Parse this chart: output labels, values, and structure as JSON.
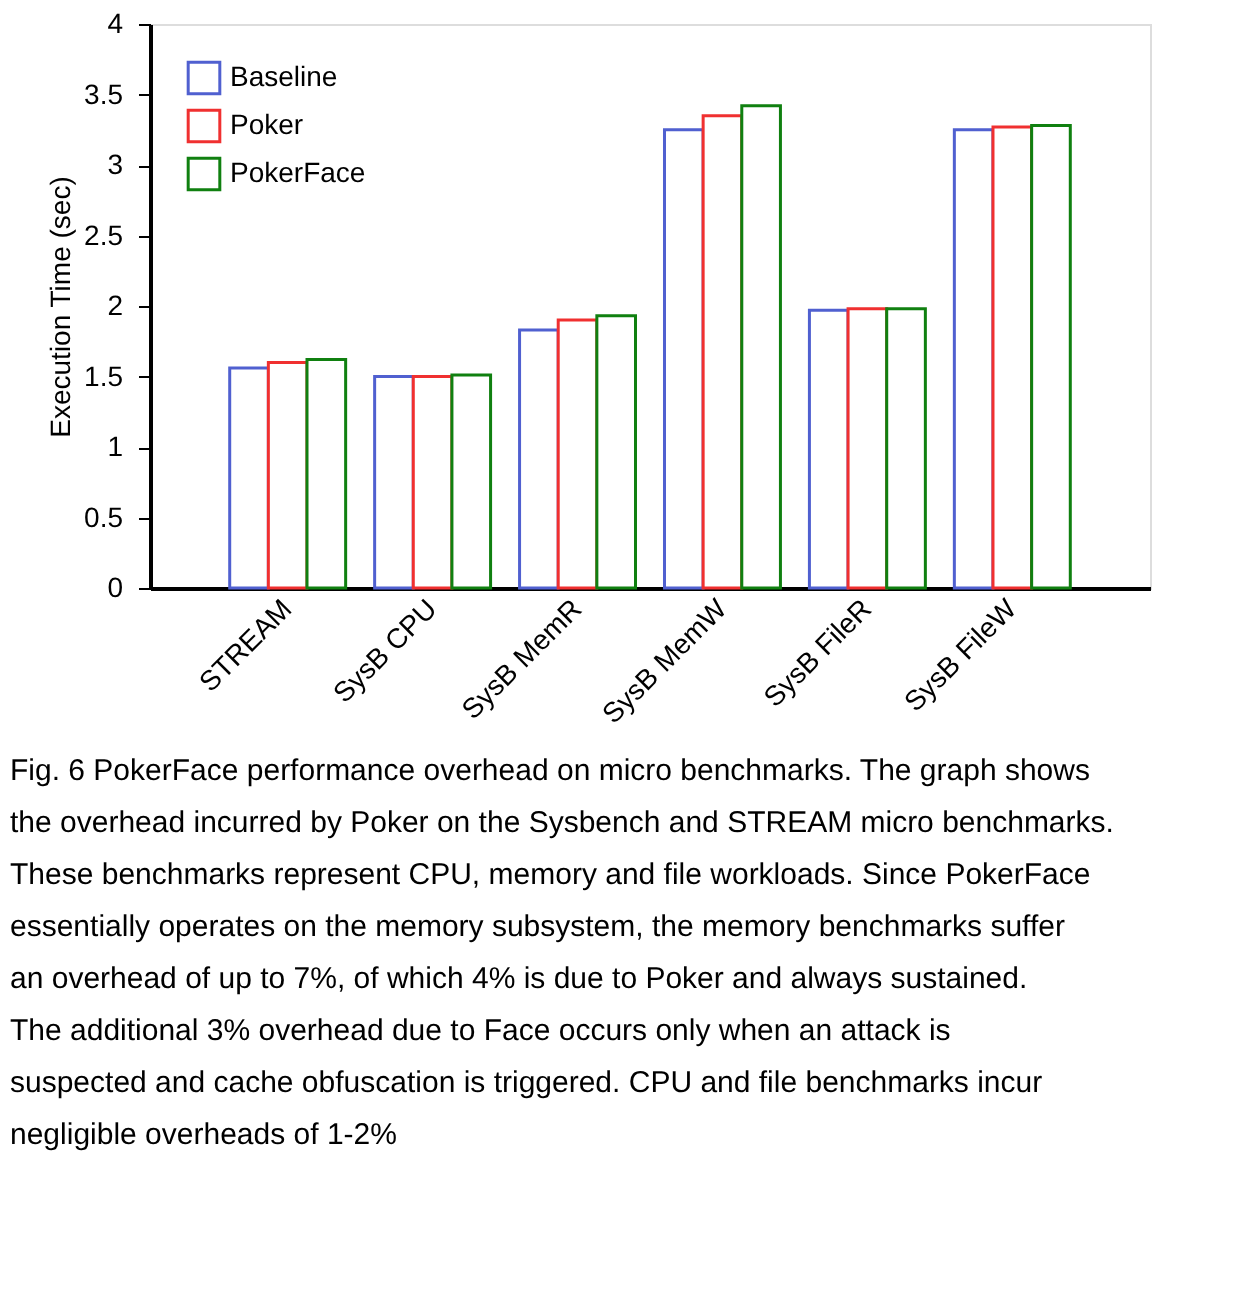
{
  "chart_data": {
    "type": "bar",
    "categories": [
      "STREAM",
      "SysB CPU",
      "SysB MemR",
      "SysB MemW",
      "SysB FileR",
      "SysB FileW"
    ],
    "series": [
      {
        "name": "Baseline",
        "color": "#5060d0",
        "values": [
          1.56,
          1.5,
          1.83,
          3.25,
          1.97,
          3.25
        ]
      },
      {
        "name": "Poker",
        "color": "#f03030",
        "values": [
          1.6,
          1.5,
          1.9,
          3.35,
          1.98,
          3.27
        ]
      },
      {
        "name": "PokerFace",
        "color": "#108010",
        "values": [
          1.62,
          1.51,
          1.93,
          3.42,
          1.98,
          3.28
        ]
      }
    ],
    "ylabel": "Execution Time (sec)",
    "ylim": [
      0,
      4
    ],
    "yticks": [
      0,
      0.5,
      1,
      1.5,
      2,
      2.5,
      3,
      3.5,
      4
    ],
    "legend": "top left",
    "grid": false,
    "annotations": [
      "Fig. 6 PokerFace performance overhead on micro benchmarks. The graph shows the overhead incurred by Poker on the Sysbench and STREAM micro benchmarks. These benchmarks represent CPU, memory and file workloads. Since PokerFace essentially operates on the memory subsystem, the memory benchmarks suffer an overhead of up to 7%, of which 4% is due to Poker and always sustained. The additional 3% overhead due to Face occurs only when an attack is suspected and cache obfuscation is triggered. CPU and file benchmarks incur negligible overheads of 1-2%"
    ]
  }
}
